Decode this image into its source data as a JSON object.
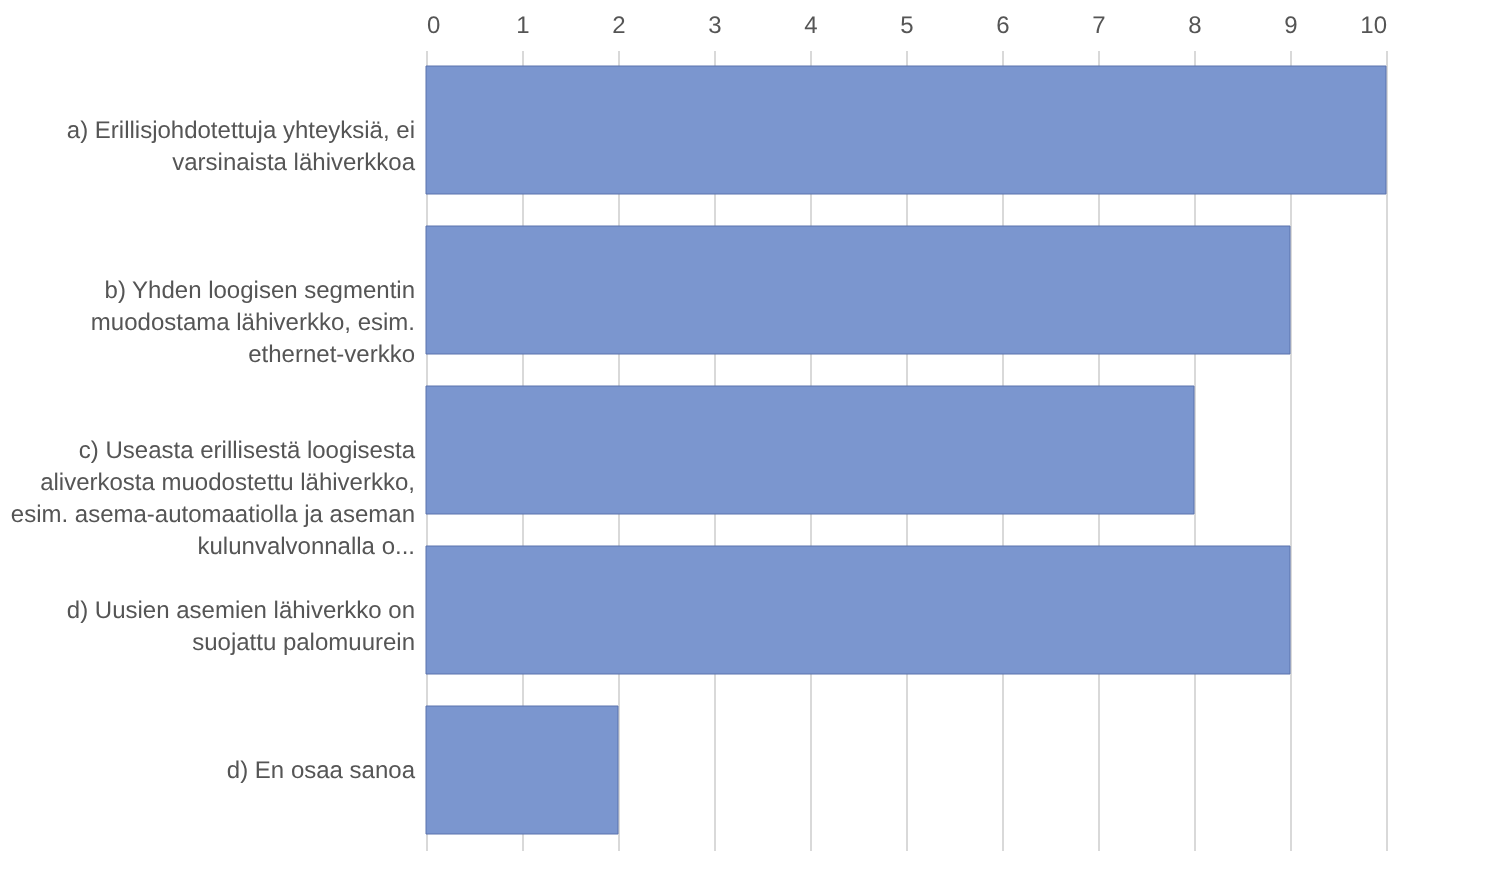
{
  "chart_data": {
    "type": "bar",
    "orientation": "horizontal",
    "categories": [
      "a) Erillisjohdotettuja yhteyksiä, ei varsinaista lähiverkkoa",
      "b) Yhden loogisen segmentin muodostama lähiverkko, esim. ethernet-verkko",
      "c) Useasta erillisestä loogisesta aliverkosta muodostettu lähiverkko, esim. asema-automaatiolla ja aseman kulunvalvonnalla o...",
      "d) Uusien asemien lähiverkko on suojattu palomuurein",
      "d) En osaa sanoa"
    ],
    "values": [
      10,
      9,
      8,
      9,
      2
    ],
    "color": "#7b96cf",
    "xlim": [
      0,
      10
    ],
    "xticks": [
      0,
      1,
      2,
      3,
      4,
      5,
      6,
      7,
      8,
      9,
      10
    ],
    "grid": "x"
  }
}
